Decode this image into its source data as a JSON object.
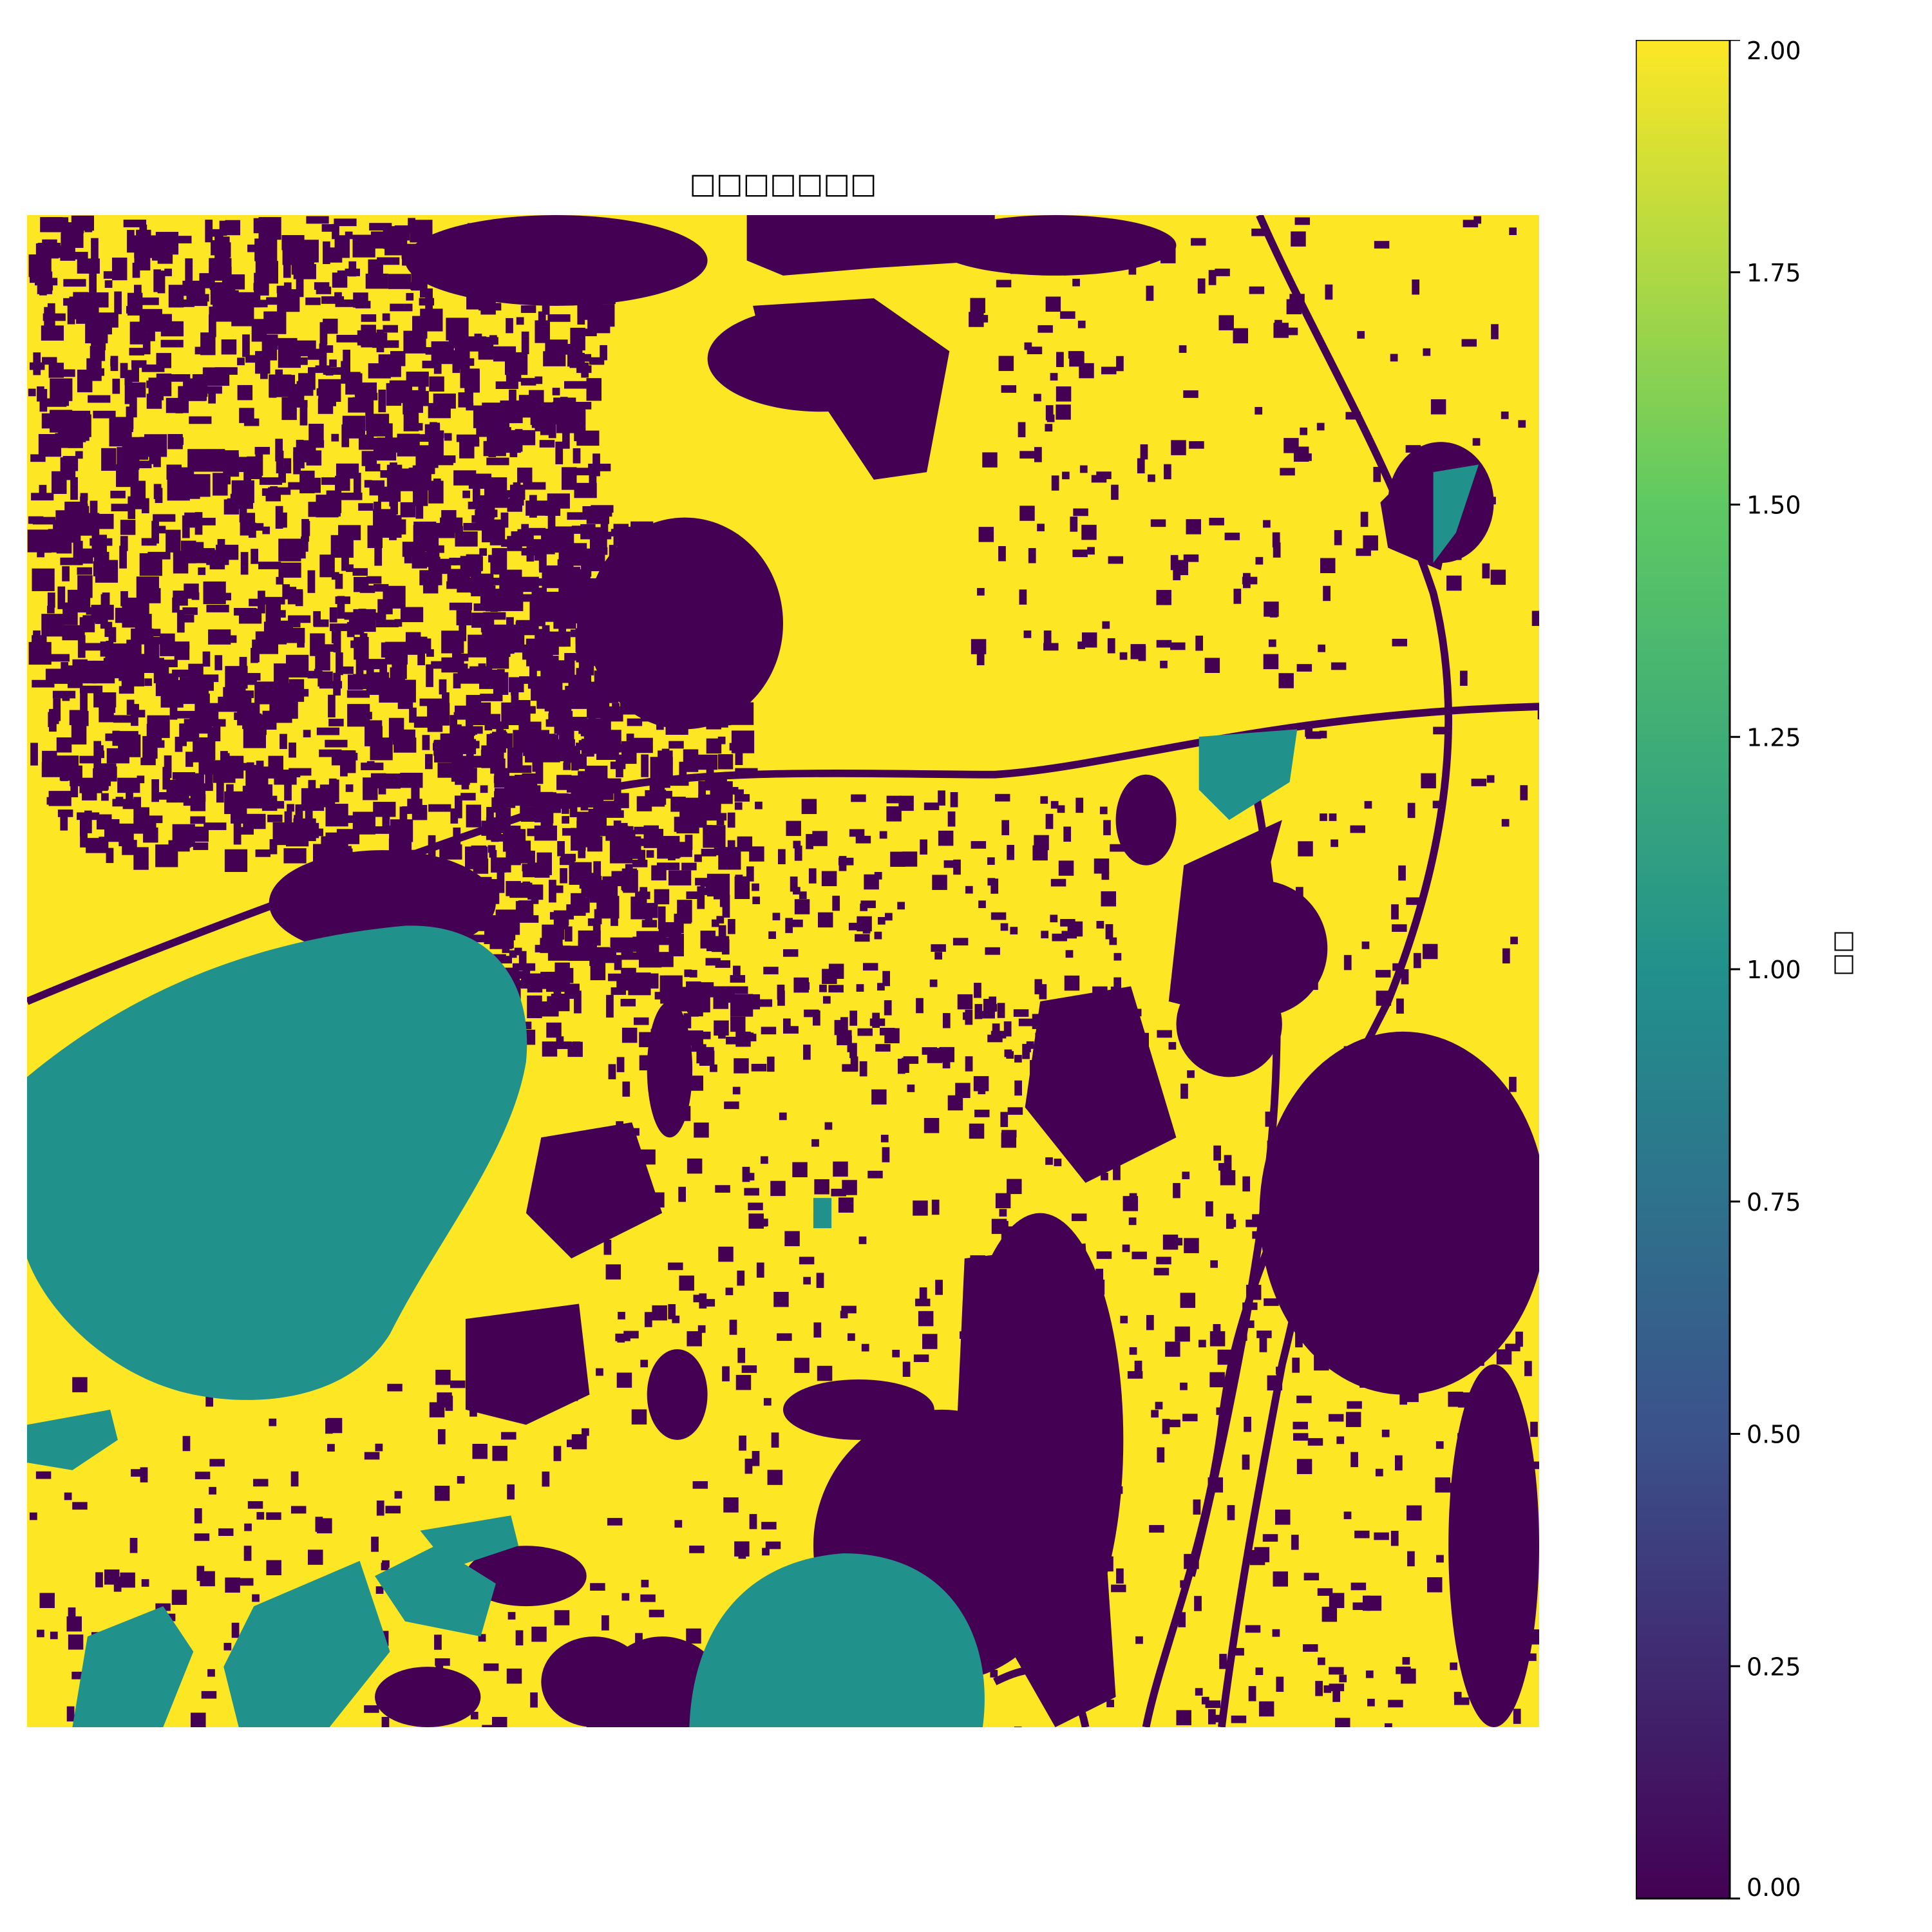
{
  "chart_data": {
    "type": "heatmap",
    "title": "□□□□□□□",
    "colorbar": {
      "label": "□□",
      "range": [
        0.0,
        2.0
      ],
      "ticks": [
        "0.00",
        "0.25",
        "0.50",
        "0.75",
        "1.00",
        "1.25",
        "1.50",
        "1.75",
        "2.00"
      ],
      "colormap": "viridis",
      "stops": [
        "#440154",
        "#3b528b",
        "#21918c",
        "#5ec962",
        "#fde725"
      ]
    },
    "classes": [
      {
        "value": 0,
        "color": "#440154"
      },
      {
        "value": 1,
        "color": "#21918c"
      },
      {
        "value": 2,
        "color": "#fde725"
      }
    ],
    "background_value": 2,
    "regions": [
      {
        "value": 1,
        "desc": "large lake west"
      },
      {
        "value": 1,
        "desc": "round pond south"
      },
      {
        "value": 0,
        "desc": "dark clusters"
      }
    ],
    "axes_visible": false
  }
}
